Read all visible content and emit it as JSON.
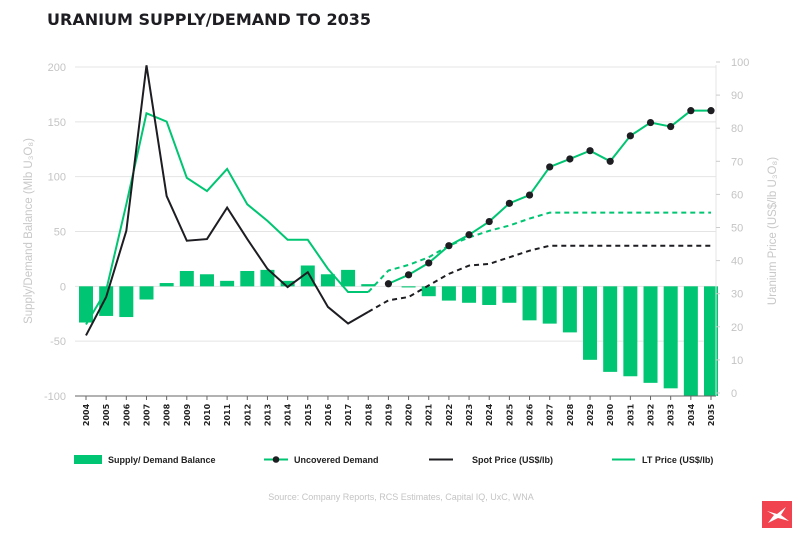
{
  "chart_data": {
    "type": "bar+line",
    "title": "URANIUM SUPPLY/DEMAND TO 2035",
    "source": "Source: Company Reports, RCS Estimates, Capital IQ, UxC, WNA",
    "categories": [
      "2004",
      "2005",
      "2006",
      "2007",
      "2008",
      "2009",
      "2010",
      "2011",
      "2012",
      "2013",
      "2014",
      "2015",
      "2016",
      "2017",
      "2018",
      "2019",
      "2020",
      "2021",
      "2022",
      "2023",
      "2024",
      "2025",
      "2026",
      "2027",
      "2028",
      "2029",
      "2030",
      "2031",
      "2032",
      "2033",
      "2034",
      "2035"
    ],
    "left_axis": {
      "label": "Supply/Demand Balance (Mlb U₃O₈)",
      "ylim": [
        -100,
        200
      ],
      "ticks": [
        "-100",
        "-50",
        "0",
        "50",
        "100",
        "150",
        "200"
      ]
    },
    "right_axis": {
      "label": "Uranium Price (US$/lb U₃O₈)",
      "ylim": [
        0,
        100
      ],
      "ticks": [
        "0",
        "10",
        "20",
        "30",
        "40",
        "50",
        "60",
        "70",
        "80",
        "90",
        "100"
      ]
    },
    "grid": true,
    "legend_position": "bottom",
    "colors": {
      "green": "#00c572",
      "black": "#1d1d22",
      "grid": "#e4e4e4",
      "logo": "#f0434f"
    },
    "series": [
      {
        "name": "Supply/ Demand Balance",
        "kind": "bar",
        "axis": "left",
        "values": [
          -33,
          -27,
          -28,
          -12,
          3,
          14,
          11,
          5,
          14,
          15,
          5,
          19,
          11,
          15,
          2,
          0,
          -1,
          -9,
          -13,
          -15,
          -17,
          -15,
          -31,
          -34,
          -42,
          -67,
          -78,
          -82,
          -88,
          -93,
          -100,
          -100
        ]
      },
      {
        "name": "Uncovered Demand",
        "kind": "line-marker",
        "axis": "right",
        "values": [
          null,
          null,
          null,
          null,
          null,
          null,
          null,
          null,
          null,
          null,
          null,
          null,
          null,
          null,
          null,
          33,
          35.7,
          39.3,
          44.5,
          47.8,
          51.8,
          57.3,
          59.8,
          68.3,
          70.7,
          73.2,
          70,
          77.7,
          81.7,
          80.5,
          85.3,
          85.3
        ]
      },
      {
        "name": "Spot Price (US$/lb)",
        "kind": "line",
        "axis": "right",
        "forecast_from": "2018",
        "values": [
          17.4,
          29,
          49,
          99,
          59.5,
          46,
          46.5,
          56,
          46.5,
          37.5,
          32,
          36.5,
          26,
          21,
          24.5,
          28,
          29,
          32.5,
          36,
          38.5,
          39,
          41,
          43,
          44.5,
          44.5,
          44.5,
          44.5,
          44.5,
          44.5,
          44.5,
          44.5,
          44.5
        ]
      },
      {
        "name": "LT Price (US$/lb)",
        "kind": "line",
        "axis": "right",
        "forecast_from": "2018",
        "values": [
          20.7,
          31,
          57,
          84.5,
          82,
          65,
          61,
          67.7,
          57,
          52,
          46.3,
          46.3,
          37.5,
          30.5,
          30.5,
          37,
          38.7,
          41,
          44.5,
          47,
          49,
          50.6,
          52.7,
          54.5,
          54.5,
          54.5,
          54.5,
          54.5,
          54.5,
          54.5,
          54.5,
          54.5
        ]
      }
    ]
  }
}
